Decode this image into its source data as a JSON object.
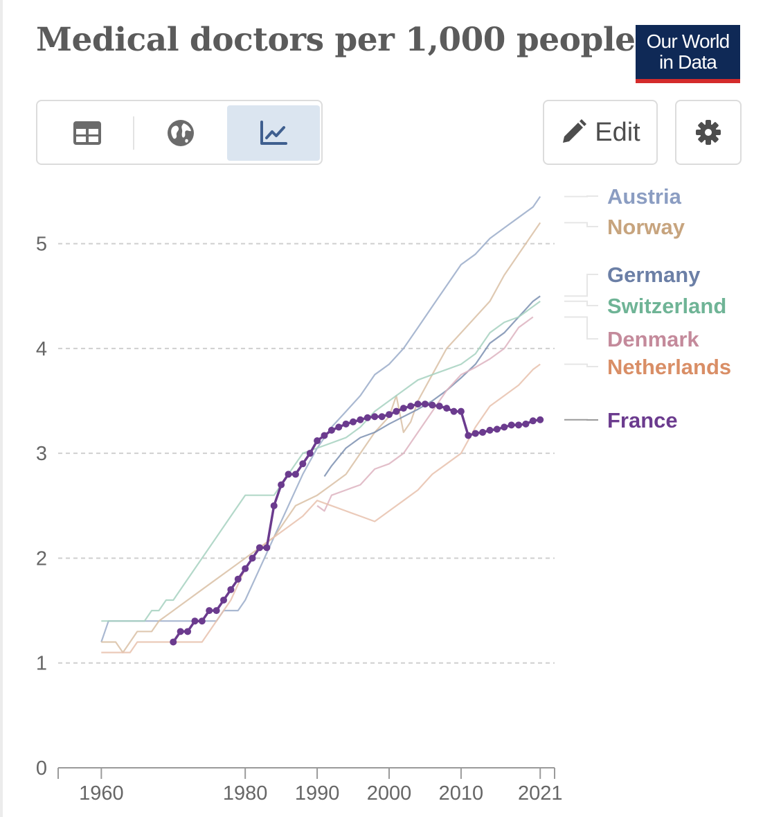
{
  "title": "Medical doctors per 1,000 people",
  "logo": {
    "line1": "Our World",
    "line2": "in Data"
  },
  "toolbar": {
    "tabs": [
      {
        "name": "table",
        "icon": "table-icon",
        "active": false
      },
      {
        "name": "map",
        "icon": "globe-icon",
        "active": false
      },
      {
        "name": "chart",
        "icon": "line-chart-icon",
        "active": true
      }
    ],
    "edit_label": "Edit",
    "settings_icon": "gear-icon"
  },
  "chart_data": {
    "type": "line",
    "title": "Medical doctors per 1,000 people",
    "xlabel": "",
    "ylabel": "",
    "xlim": [
      1954,
      2023
    ],
    "ylim": [
      0,
      5.5
    ],
    "yticks": [
      0,
      1,
      2,
      3,
      4,
      5
    ],
    "xticks": [
      {
        "v": 1960,
        "label": "1960"
      },
      {
        "v": 1980,
        "label": "1980"
      },
      {
        "v": 1990,
        "label": "1990"
      },
      {
        "v": 2000,
        "label": "2000"
      },
      {
        "v": 2010,
        "label": "2010"
      },
      {
        "v": 2021,
        "label": "2021"
      }
    ],
    "grid": true,
    "legend": "right",
    "series": [
      {
        "name": "Austria",
        "color": "#9aabc9",
        "label_color": "#8b9dc2",
        "highlight": false,
        "points": [
          [
            1960,
            1.2
          ],
          [
            1961,
            1.4
          ],
          [
            1976,
            1.4
          ],
          [
            1977,
            1.5
          ],
          [
            1979,
            1.5
          ],
          [
            1980,
            1.6
          ],
          [
            1982,
            1.9
          ],
          [
            1984,
            2.2
          ],
          [
            1986,
            2.5
          ],
          [
            1988,
            2.8
          ],
          [
            1990,
            3.05
          ],
          [
            1992,
            3.25
          ],
          [
            1994,
            3.4
          ],
          [
            1996,
            3.55
          ],
          [
            1998,
            3.75
          ],
          [
            1999,
            3.8
          ],
          [
            2000,
            3.85
          ],
          [
            2002,
            4.0
          ],
          [
            2004,
            4.2
          ],
          [
            2006,
            4.4
          ],
          [
            2008,
            4.6
          ],
          [
            2010,
            4.8
          ],
          [
            2012,
            4.9
          ],
          [
            2014,
            5.05
          ],
          [
            2016,
            5.15
          ],
          [
            2018,
            5.25
          ],
          [
            2020,
            5.35
          ],
          [
            2021,
            5.45
          ]
        ]
      },
      {
        "name": "Norway",
        "color": "#d9c0a5",
        "label_color": "#c7a47e",
        "highlight": false,
        "points": [
          [
            1960,
            1.2
          ],
          [
            1962,
            1.2
          ],
          [
            1963,
            1.1
          ],
          [
            1964,
            1.2
          ],
          [
            1965,
            1.3
          ],
          [
            1967,
            1.3
          ],
          [
            1968,
            1.4
          ],
          [
            1970,
            1.5
          ],
          [
            1972,
            1.6
          ],
          [
            1974,
            1.7
          ],
          [
            1976,
            1.8
          ],
          [
            1978,
            1.9
          ],
          [
            1980,
            2.0
          ],
          [
            1982,
            2.1
          ],
          [
            1984,
            2.2
          ],
          [
            1986,
            2.4
          ],
          [
            1987,
            2.5
          ],
          [
            1990,
            2.6
          ],
          [
            1992,
            2.7
          ],
          [
            1994,
            2.8
          ],
          [
            1996,
            3.0
          ],
          [
            1998,
            3.2
          ],
          [
            2000,
            3.35
          ],
          [
            2001,
            3.55
          ],
          [
            2002,
            3.2
          ],
          [
            2003,
            3.3
          ],
          [
            2004,
            3.5
          ],
          [
            2006,
            3.75
          ],
          [
            2008,
            4.0
          ],
          [
            2010,
            4.15
          ],
          [
            2012,
            4.3
          ],
          [
            2014,
            4.45
          ],
          [
            2016,
            4.7
          ],
          [
            2018,
            4.9
          ],
          [
            2020,
            5.1
          ],
          [
            2021,
            5.2
          ]
        ]
      },
      {
        "name": "Germany",
        "color": "#7b8fb0",
        "label_color": "#6b7fa6",
        "highlight": false,
        "points": [
          [
            1991,
            2.78
          ],
          [
            1992,
            2.88
          ],
          [
            1994,
            3.05
          ],
          [
            1996,
            3.15
          ],
          [
            1998,
            3.2
          ],
          [
            2000,
            3.28
          ],
          [
            2002,
            3.35
          ],
          [
            2004,
            3.42
          ],
          [
            2006,
            3.5
          ],
          [
            2008,
            3.6
          ],
          [
            2010,
            3.72
          ],
          [
            2012,
            3.85
          ],
          [
            2014,
            4.05
          ],
          [
            2016,
            4.15
          ],
          [
            2018,
            4.3
          ],
          [
            2020,
            4.45
          ],
          [
            2021,
            4.5
          ]
        ]
      },
      {
        "name": "Switzerland",
        "color": "#a6d1bf",
        "label_color": "#6fb496",
        "highlight": false,
        "points": [
          [
            1960,
            1.4
          ],
          [
            1966,
            1.4
          ],
          [
            1967,
            1.5
          ],
          [
            1968,
            1.5
          ],
          [
            1969,
            1.6
          ],
          [
            1970,
            1.6
          ],
          [
            1972,
            1.8
          ],
          [
            1974,
            2.0
          ],
          [
            1976,
            2.2
          ],
          [
            1978,
            2.4
          ],
          [
            1980,
            2.6
          ],
          [
            1984,
            2.6
          ],
          [
            1986,
            2.8
          ],
          [
            1988,
            3.0
          ],
          [
            1990,
            3.05
          ],
          [
            1992,
            3.1
          ],
          [
            1994,
            3.15
          ],
          [
            1996,
            3.25
          ],
          [
            1998,
            3.4
          ],
          [
            2000,
            3.5
          ],
          [
            2002,
            3.6
          ],
          [
            2004,
            3.7
          ],
          [
            2006,
            3.75
          ],
          [
            2008,
            3.8
          ],
          [
            2010,
            3.85
          ],
          [
            2012,
            3.95
          ],
          [
            2014,
            4.15
          ],
          [
            2016,
            4.25
          ],
          [
            2018,
            4.3
          ],
          [
            2020,
            4.4
          ],
          [
            2021,
            4.45
          ]
        ]
      },
      {
        "name": "Denmark",
        "color": "#ddb3c0",
        "label_color": "#c48a9b",
        "highlight": false,
        "points": [
          [
            1990,
            2.5
          ],
          [
            1991,
            2.45
          ],
          [
            1992,
            2.6
          ],
          [
            1994,
            2.65
          ],
          [
            1996,
            2.7
          ],
          [
            1998,
            2.85
          ],
          [
            2000,
            2.9
          ],
          [
            2002,
            3.0
          ],
          [
            2004,
            3.2
          ],
          [
            2006,
            3.4
          ],
          [
            2008,
            3.6
          ],
          [
            2010,
            3.75
          ],
          [
            2012,
            3.82
          ],
          [
            2014,
            3.9
          ],
          [
            2016,
            4.0
          ],
          [
            2018,
            4.2
          ],
          [
            2020,
            4.3
          ]
        ]
      },
      {
        "name": "Netherlands",
        "color": "#e8c1ad",
        "label_color": "#d98e66",
        "highlight": false,
        "points": [
          [
            1960,
            1.1
          ],
          [
            1964,
            1.1
          ],
          [
            1965,
            1.2
          ],
          [
            1974,
            1.2
          ],
          [
            1976,
            1.4
          ],
          [
            1978,
            1.6
          ],
          [
            1980,
            1.9
          ],
          [
            1982,
            2.1
          ],
          [
            1984,
            2.2
          ],
          [
            1986,
            2.3
          ],
          [
            1988,
            2.4
          ],
          [
            1990,
            2.55
          ],
          [
            1992,
            2.5
          ],
          [
            1994,
            2.45
          ],
          [
            1996,
            2.4
          ],
          [
            1998,
            2.35
          ],
          [
            2000,
            2.45
          ],
          [
            2002,
            2.55
          ],
          [
            2004,
            2.65
          ],
          [
            2006,
            2.8
          ],
          [
            2008,
            2.9
          ],
          [
            2010,
            3.0
          ],
          [
            2012,
            3.25
          ],
          [
            2014,
            3.45
          ],
          [
            2016,
            3.55
          ],
          [
            2018,
            3.65
          ],
          [
            2020,
            3.8
          ],
          [
            2021,
            3.85
          ]
        ]
      },
      {
        "name": "France",
        "color": "#6b3b8e",
        "label_color": "#6b3b8e",
        "highlight": true,
        "points": [
          [
            1970,
            1.2
          ],
          [
            1971,
            1.3
          ],
          [
            1972,
            1.3
          ],
          [
            1973,
            1.4
          ],
          [
            1974,
            1.4
          ],
          [
            1975,
            1.5
          ],
          [
            1976,
            1.5
          ],
          [
            1977,
            1.6
          ],
          [
            1978,
            1.7
          ],
          [
            1979,
            1.8
          ],
          [
            1980,
            1.9
          ],
          [
            1981,
            2.0
          ],
          [
            1982,
            2.1
          ],
          [
            1983,
            2.1
          ],
          [
            1984,
            2.5
          ],
          [
            1985,
            2.7
          ],
          [
            1986,
            2.8
          ],
          [
            1987,
            2.8
          ],
          [
            1988,
            2.9
          ],
          [
            1989,
            3.0
          ],
          [
            1990,
            3.12
          ],
          [
            1991,
            3.17
          ],
          [
            1992,
            3.22
          ],
          [
            1993,
            3.25
          ],
          [
            1994,
            3.28
          ],
          [
            1995,
            3.3
          ],
          [
            1996,
            3.32
          ],
          [
            1997,
            3.34
          ],
          [
            1998,
            3.35
          ],
          [
            1999,
            3.35
          ],
          [
            2000,
            3.37
          ],
          [
            2001,
            3.4
          ],
          [
            2002,
            3.43
          ],
          [
            2003,
            3.45
          ],
          [
            2004,
            3.47
          ],
          [
            2005,
            3.47
          ],
          [
            2006,
            3.46
          ],
          [
            2007,
            3.45
          ],
          [
            2008,
            3.43
          ],
          [
            2009,
            3.4
          ],
          [
            2010,
            3.4
          ],
          [
            2011,
            3.17
          ],
          [
            2012,
            3.19
          ],
          [
            2013,
            3.2
          ],
          [
            2014,
            3.22
          ],
          [
            2015,
            3.23
          ],
          [
            2016,
            3.25
          ],
          [
            2017,
            3.27
          ],
          [
            2018,
            3.27
          ],
          [
            2019,
            3.28
          ],
          [
            2020,
            3.31
          ],
          [
            2021,
            3.32
          ]
        ]
      }
    ]
  }
}
